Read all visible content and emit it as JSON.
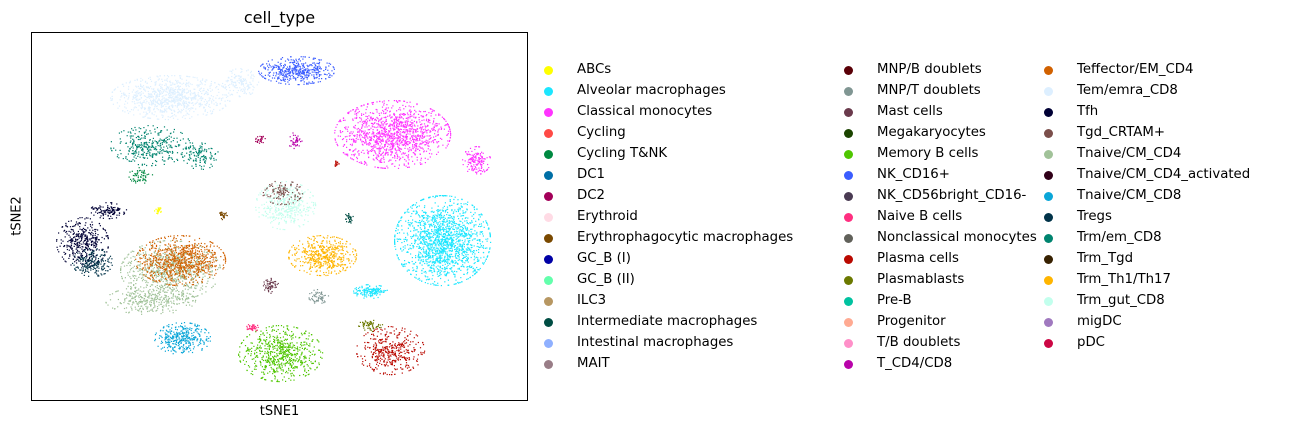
{
  "chart_data": {
    "type": "scatter",
    "title": "cell_type",
    "xlabel": "tSNE1",
    "ylabel": "tSNE2",
    "xticks": "none",
    "yticks": "none",
    "grid": false,
    "legend_placement": "right, outside plot, 3 columns",
    "series": [
      {
        "name": "ABCs",
        "color": "#ffff00"
      },
      {
        "name": "Alveolar macrophages",
        "color": "#1ce6ff"
      },
      {
        "name": "Classical monocytes",
        "color": "#ff34ff"
      },
      {
        "name": "Cycling",
        "color": "#ff4a46"
      },
      {
        "name": "Cycling T&NK",
        "color": "#008941"
      },
      {
        "name": "DC1",
        "color": "#006fa6"
      },
      {
        "name": "DC2",
        "color": "#a30059"
      },
      {
        "name": "Erythroid",
        "color": "#ffdbe5"
      },
      {
        "name": "Erythrophagocytic macrophages",
        "color": "#7a4900"
      },
      {
        "name": "GC_B (I)",
        "color": "#0000a6"
      },
      {
        "name": "GC_B (II)",
        "color": "#63ffac"
      },
      {
        "name": "ILC3",
        "color": "#b79762"
      },
      {
        "name": "Intermediate macrophages",
        "color": "#004d43"
      },
      {
        "name": "Intestinal macrophages",
        "color": "#8fb0ff"
      },
      {
        "name": "MAIT",
        "color": "#997d87"
      },
      {
        "name": "MNP/B doublets",
        "color": "#5a0007"
      },
      {
        "name": "MNP/T doublets",
        "color": "#809693"
      },
      {
        "name": "Mast cells",
        "color": "#6a3a4c"
      },
      {
        "name": "Megakaryocytes",
        "color": "#1b4400"
      },
      {
        "name": "Memory B cells",
        "color": "#4fc601"
      },
      {
        "name": "NK_CD16+",
        "color": "#3b5dff"
      },
      {
        "name": "NK_CD56bright_CD16-",
        "color": "#4a3b53"
      },
      {
        "name": "Naive B cells",
        "color": "#ff2f80"
      },
      {
        "name": "Nonclassical monocytes",
        "color": "#61615a"
      },
      {
        "name": "Plasma cells",
        "color": "#ba0900"
      },
      {
        "name": "Plasmablasts",
        "color": "#6b7900"
      },
      {
        "name": "Pre-B",
        "color": "#00c2a0"
      },
      {
        "name": "Progenitor",
        "color": "#ffaa92"
      },
      {
        "name": "T/B doublets",
        "color": "#ff90c9"
      },
      {
        "name": "T_CD4/CD8",
        "color": "#b903aa"
      },
      {
        "name": "Teffector/EM_CD4",
        "color": "#d16100"
      },
      {
        "name": "Tem/emra_CD8",
        "color": "#ddefff"
      },
      {
        "name": "Tfh",
        "color": "#000035"
      },
      {
        "name": "Tgd_CRTAM+",
        "color": "#7b4f4b"
      },
      {
        "name": "Tnaive/CM_CD4",
        "color": "#a1c299"
      },
      {
        "name": "Tnaive/CM_CD4_activated",
        "color": "#300018"
      },
      {
        "name": "Tnaive/CM_CD8",
        "color": "#0aa6d8"
      },
      {
        "name": "Tregs",
        "color": "#013349"
      },
      {
        "name": "Trm/em_CD8",
        "color": "#00846f"
      },
      {
        "name": "Trm_Tgd",
        "color": "#372101"
      },
      {
        "name": "Trm_Th1/Th17",
        "color": "#ffb500"
      },
      {
        "name": "Trm_gut_CD8",
        "color": "#c2ffed"
      },
      {
        "name": "migDC",
        "color": "#a079bf"
      },
      {
        "name": "pDC",
        "color": "#cc0744"
      }
    ]
  }
}
